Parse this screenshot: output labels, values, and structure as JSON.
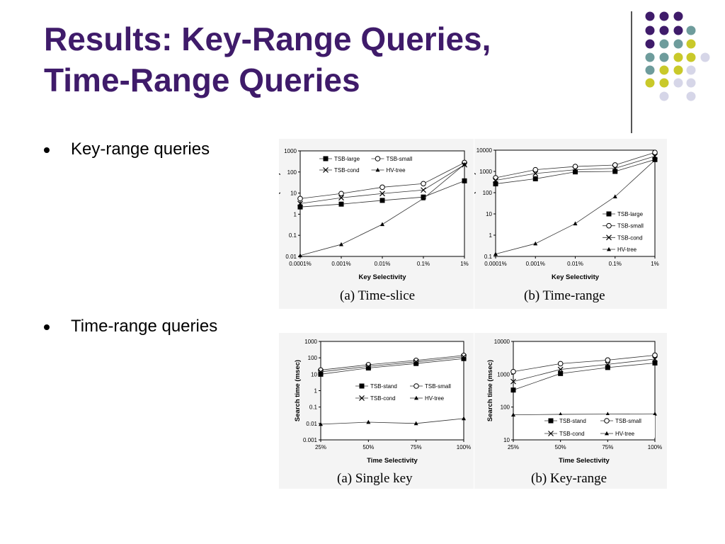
{
  "slide": {
    "title_line1": "Results: Key-Range Queries,",
    "title_line2": "Time-Range Queries",
    "bullets": [
      "Key-range queries",
      "Time-range queries"
    ]
  },
  "colors": {
    "title": "#3f1b6a",
    "dot_purple": "#3f1b6a",
    "dot_teal": "#6e9c9c",
    "dot_yellow": "#c9c92a",
    "dot_lavender": "#d6d6e8"
  },
  "chart_data": [
    {
      "type": "line",
      "caption": "(a) Time-slice",
      "xlabel": "Key Selectivity",
      "ylabel": "Search time (msec)",
      "yscale": "log",
      "ylim": [
        0.01,
        1000
      ],
      "yticks": [
        "0.01",
        "0.1",
        "1",
        "10",
        "100",
        "1000"
      ],
      "categories": [
        "0.0001%",
        "0.001%",
        "0.01%",
        "0.1%",
        "1%"
      ],
      "legend_position": "top-left",
      "series": [
        {
          "name": "TSB-large",
          "marker": "square",
          "values": [
            2.2,
            3,
            4.5,
            6.5,
            38
          ]
        },
        {
          "name": "TSB-small",
          "marker": "circle",
          "values": [
            5.5,
            9.5,
            19,
            28,
            280
          ]
        },
        {
          "name": "TSB-cond",
          "marker": "x",
          "values": [
            3.2,
            6,
            9.5,
            14,
            220
          ]
        },
        {
          "name": "HV-tree",
          "marker": "triangle",
          "values": [
            0.011,
            0.037,
            0.33,
            5.5,
            230
          ]
        }
      ]
    },
    {
      "type": "line",
      "caption": "(b) Time-range",
      "xlabel": "Key Selectivity",
      "ylabel": "Search time (msec)",
      "yscale": "log",
      "ylim": [
        0.1,
        10000
      ],
      "yticks": [
        "0.1",
        "1",
        "10",
        "100",
        "1000",
        "10000"
      ],
      "categories": [
        "0.0001%",
        "0.001%",
        "0.01%",
        "0.1%",
        "1%"
      ],
      "legend_position": "bottom-right",
      "series": [
        {
          "name": "TSB-large",
          "marker": "square",
          "values": [
            260,
            450,
            950,
            1000,
            3600
          ]
        },
        {
          "name": "TSB-small",
          "marker": "circle",
          "values": [
            500,
            1200,
            1700,
            2000,
            7800
          ]
        },
        {
          "name": "TSB-cond",
          "marker": "x",
          "values": [
            380,
            800,
            1200,
            1400,
            5200
          ]
        },
        {
          "name": "HV-tree",
          "marker": "triangle",
          "values": [
            0.13,
            0.4,
            3.5,
            65,
            3400
          ]
        }
      ]
    },
    {
      "type": "line",
      "caption": "(a) Single key",
      "xlabel": "Time Selectivity",
      "ylabel": "Search time (msec)",
      "yscale": "log",
      "ylim": [
        0.001,
        1000
      ],
      "yticks": [
        "0.001",
        "0.01",
        "0.1",
        "1",
        "10",
        "100",
        "1000"
      ],
      "categories": [
        "25%",
        "50%",
        "75%",
        "100%"
      ],
      "legend_position": "center-right",
      "series": [
        {
          "name": "TSB-stand",
          "marker": "square",
          "values": [
            10,
            24,
            45,
            90
          ]
        },
        {
          "name": "TSB-small",
          "marker": "circle",
          "values": [
            18,
            38,
            70,
            140
          ]
        },
        {
          "name": "TSB-cond",
          "marker": "x",
          "values": [
            14,
            30,
            57,
            115
          ]
        },
        {
          "name": "HV-tree",
          "marker": "triangle",
          "values": [
            0.009,
            0.012,
            0.01,
            0.02
          ]
        }
      ]
    },
    {
      "type": "line",
      "caption": "(b) Key-range",
      "xlabel": "Time Selectivity",
      "ylabel": "Search time (msec)",
      "yscale": "log",
      "ylim": [
        10,
        10000
      ],
      "yticks": [
        "10",
        "100",
        "1000",
        "10000"
      ],
      "categories": [
        "25%",
        "50%",
        "75%",
        "100%"
      ],
      "legend_position": "bottom-right",
      "series": [
        {
          "name": "TSB-stand",
          "marker": "square",
          "values": [
            330,
            1050,
            1600,
            2200
          ]
        },
        {
          "name": "TSB-small",
          "marker": "circle",
          "values": [
            1200,
            2100,
            2700,
            3800
          ]
        },
        {
          "name": "TSB-cond",
          "marker": "x",
          "values": [
            600,
            1400,
            2000,
            2900
          ]
        },
        {
          "name": "HV-tree",
          "marker": "triangle",
          "values": [
            58,
            60,
            61,
            62
          ]
        }
      ]
    }
  ]
}
